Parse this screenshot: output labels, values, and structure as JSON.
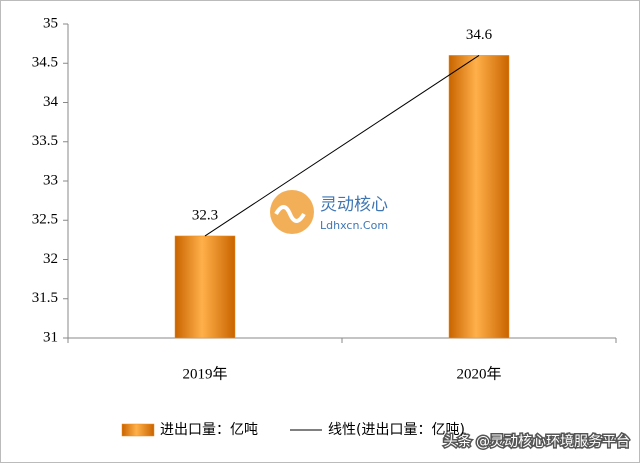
{
  "chart_data": {
    "type": "bar",
    "categories": [
      "2019年",
      "2020年"
    ],
    "series": [
      {
        "name": "进出口量：亿吨",
        "type": "bar",
        "color": "#f08c1a",
        "values": [
          32.3,
          34.6
        ]
      },
      {
        "name": "线性(进出口量：亿吨)",
        "type": "line",
        "color": "#000000",
        "values": [
          32.3,
          34.6
        ]
      }
    ],
    "ylim": [
      31,
      35
    ],
    "yticks": [
      31,
      31.5,
      32,
      32.5,
      33,
      33.5,
      34,
      34.5,
      35
    ],
    "grid": false,
    "legend": "bottom"
  },
  "logo": {
    "title": "灵动核心",
    "subtitle": "Ldhxcn.Com"
  },
  "watermark": "头条 @灵动核心环境服务平台"
}
